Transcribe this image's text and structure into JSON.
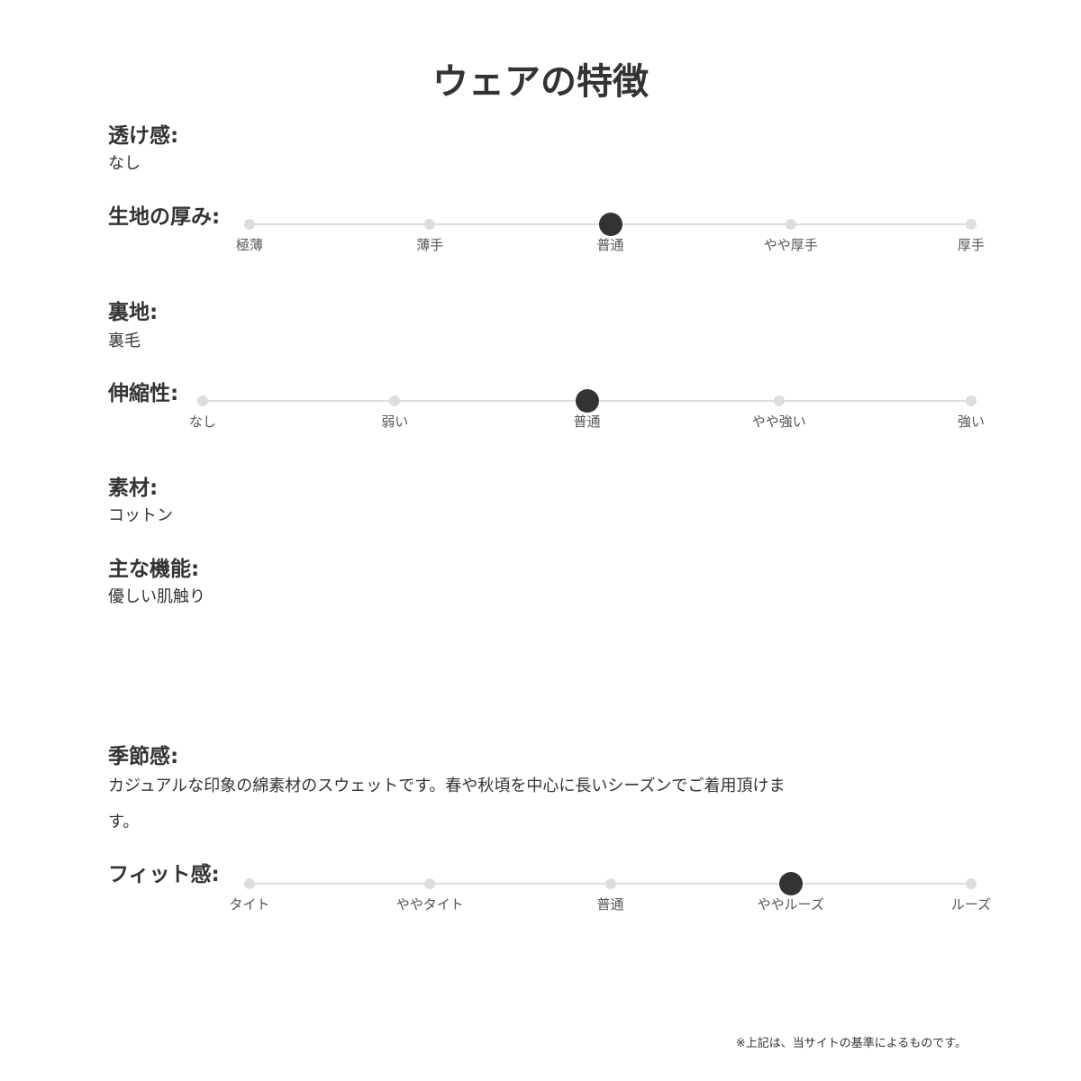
{
  "title": "ウェアの特徴",
  "sheerness": {
    "label": "透け感:",
    "value": "なし"
  },
  "thickness": {
    "label": "生地の厚み:",
    "options": [
      "極薄",
      "薄手",
      "普通",
      "やや厚手",
      "厚手"
    ],
    "selected": 2
  },
  "lining": {
    "label": "裏地:",
    "value": "裏毛"
  },
  "stretch": {
    "label": "伸縮性:",
    "options": [
      "なし",
      "弱い",
      "普通",
      "やや強い",
      "強い"
    ],
    "selected": 2
  },
  "material": {
    "label": "素材:",
    "value": "コットン"
  },
  "features": {
    "label": "主な機能:",
    "value": "優しい肌触り"
  },
  "season": {
    "label": "季節感:",
    "value": "カジュアルな印象の綿素材のスウェットです。春や秋頃を中心に長いシーズンでご着用頂けます。"
  },
  "fit": {
    "label": "フィット感:",
    "options": [
      "タイト",
      "ややタイト",
      "普通",
      "ややルーズ",
      "ルーズ"
    ],
    "selected": 3
  },
  "footnote": "※上記は、当サイトの基準によるものです。"
}
